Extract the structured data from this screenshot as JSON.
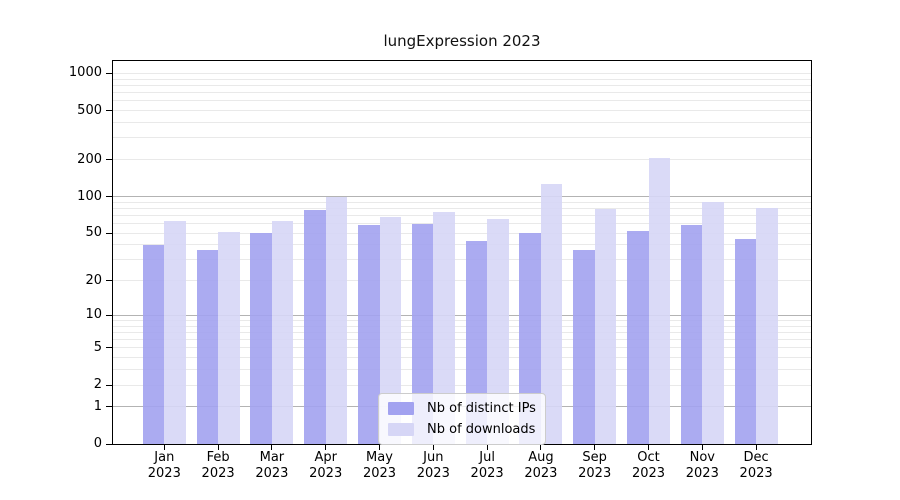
{
  "title": "lungExpression 2023",
  "chart_data": {
    "type": "bar",
    "title": "lungExpression 2023",
    "categories": [
      "Jan 2023",
      "Feb 2023",
      "Mar 2023",
      "Apr 2023",
      "May 2023",
      "Jun 2023",
      "Jul 2023",
      "Aug 2023",
      "Sep 2023",
      "Oct 2023",
      "Nov 2023",
      "Dec 2023"
    ],
    "series": [
      {
        "name": "Nb of distinct IPs",
        "color": "#a2a2f0",
        "values": [
          40,
          36,
          50,
          78,
          58,
          60,
          43,
          50,
          36,
          52,
          58,
          45
        ]
      },
      {
        "name": "Nb of downloads",
        "color": "#d6d6f6",
        "values": [
          63,
          51,
          63,
          100,
          68,
          74,
          66,
          126,
          79,
          205,
          90,
          80
        ]
      }
    ],
    "xlabel": "",
    "ylabel": "",
    "y_scale": "log10(1+v)",
    "y_ticks": [
      0,
      1,
      2,
      5,
      10,
      20,
      50,
      100,
      200,
      500,
      1000
    ],
    "ylim": [
      0,
      1260
    ],
    "grid": "horizontal",
    "legend_position": "lower-center-inside"
  },
  "colors": {
    "background": "#ffffff",
    "axis": "#000000",
    "grid_major": "#b3b3b3",
    "grid_minor": "#e9e9e9",
    "text": "#000000"
  }
}
